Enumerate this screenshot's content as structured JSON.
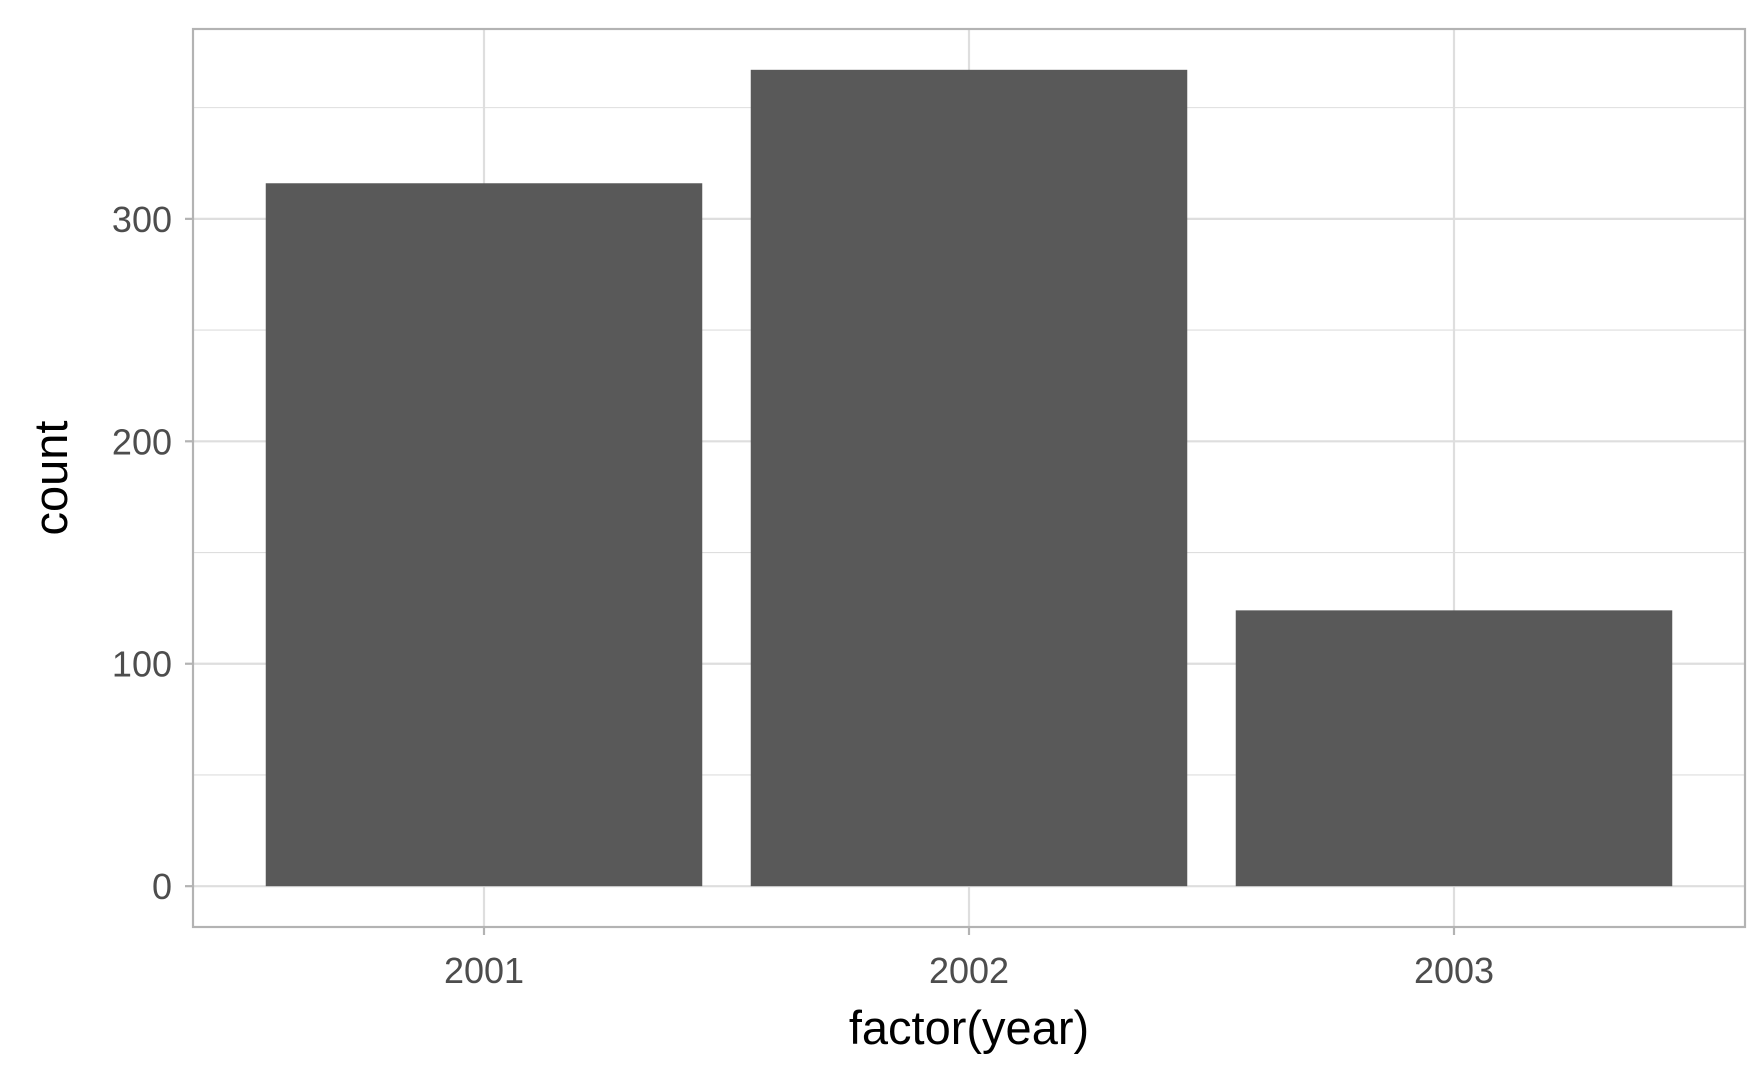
{
  "chart_data": {
    "type": "bar",
    "categories": [
      "2001",
      "2002",
      "2003"
    ],
    "values": [
      316,
      367,
      124
    ],
    "title": "",
    "xlabel": "factor(year)",
    "ylabel": "count",
    "ylim": [
      -18.35,
      385.35
    ],
    "yticks": [
      0,
      100,
      200,
      300
    ],
    "yticks_minor": [
      50,
      150,
      250,
      350
    ],
    "grid": true,
    "legend": "none",
    "colors": {
      "bar": "#595959",
      "grid": "#dedede",
      "border": "#b3b3b3",
      "tick_text": "#4d4d4d",
      "axis_title": "#000000"
    }
  }
}
